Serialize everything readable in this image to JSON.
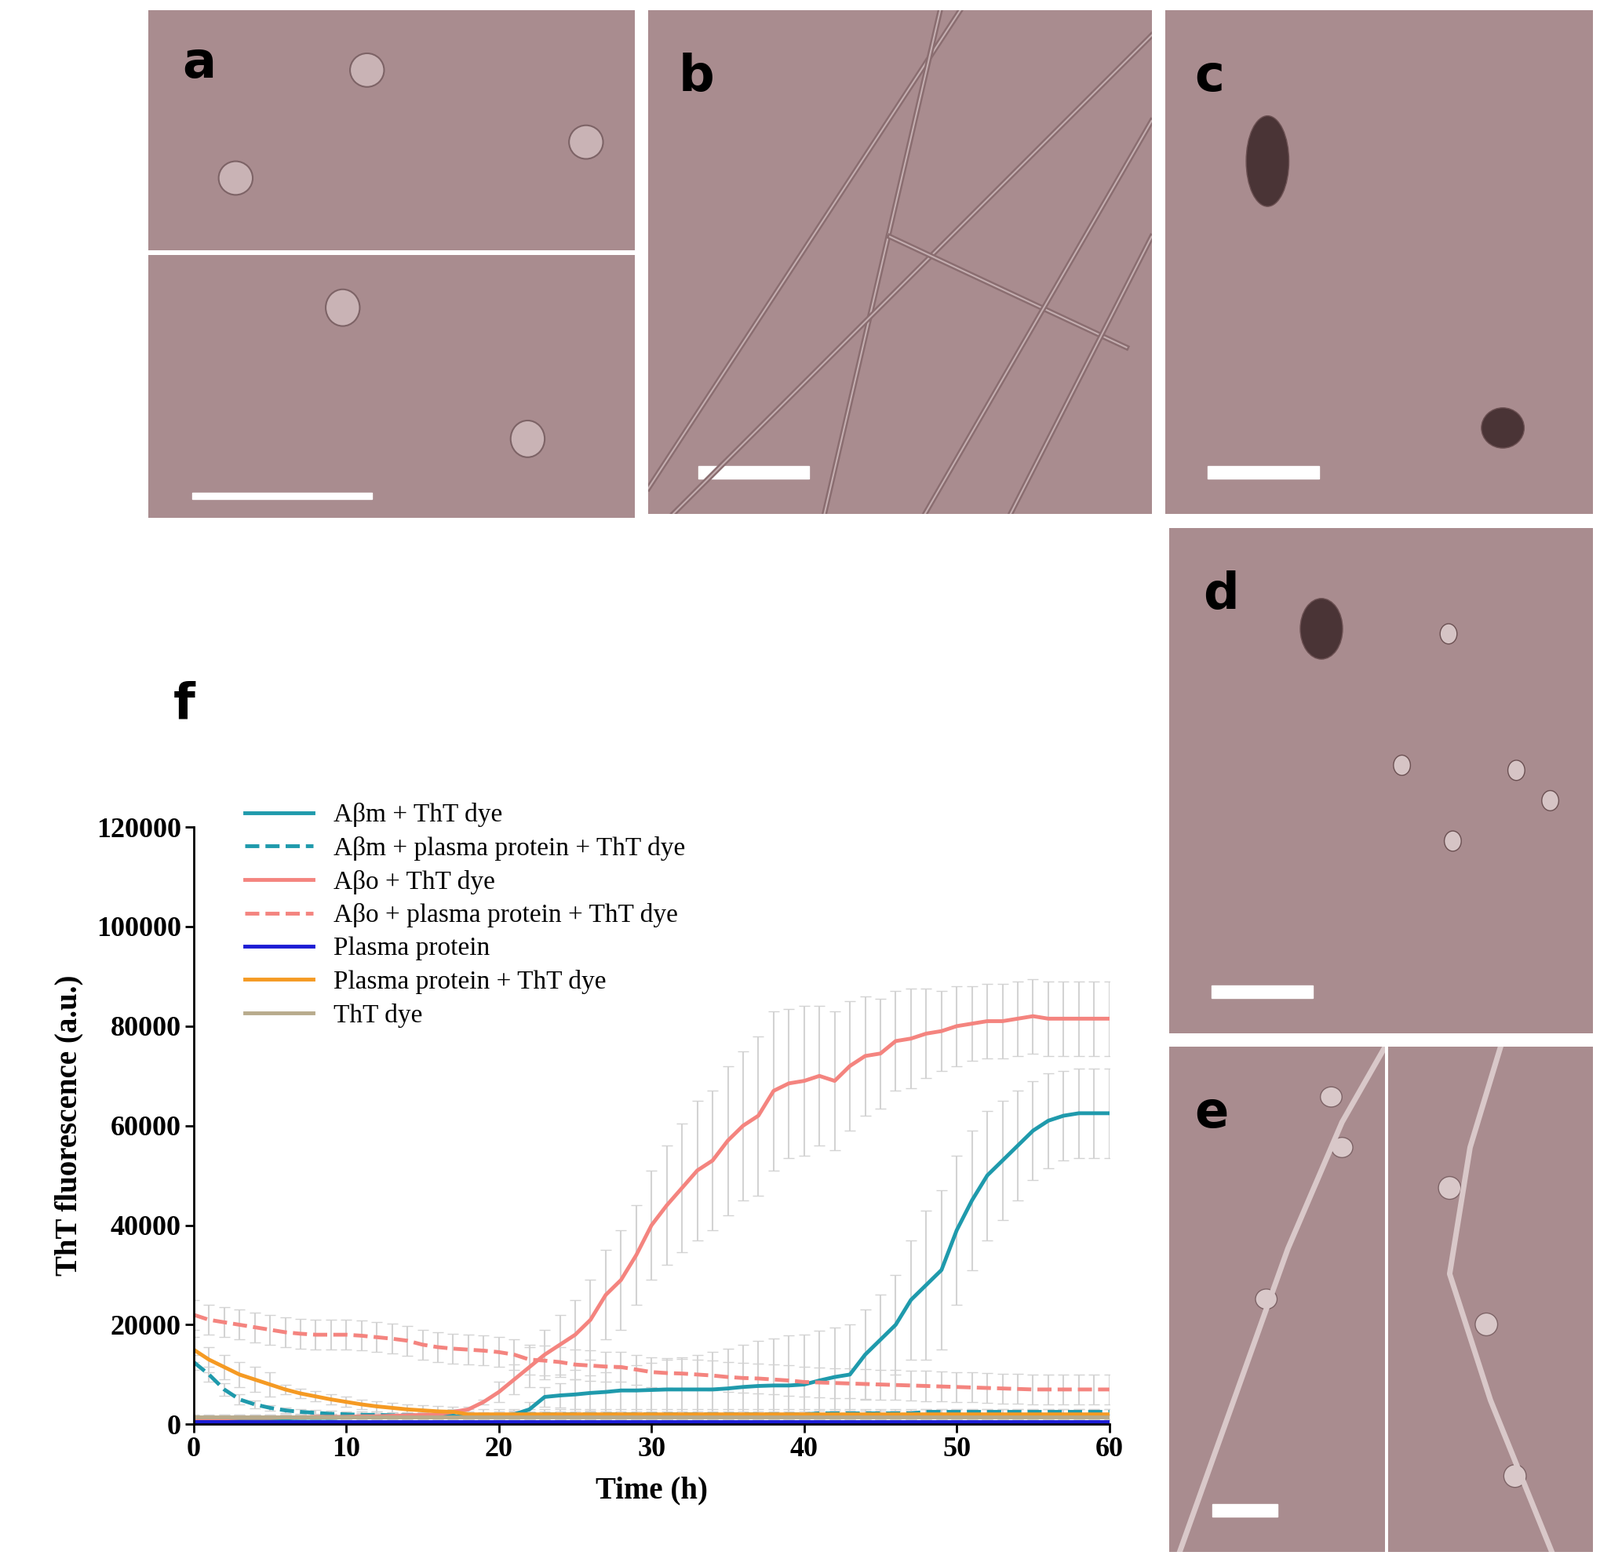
{
  "panels": [
    {
      "label": "a"
    },
    {
      "label": "b"
    },
    {
      "label": "c"
    },
    {
      "label": "d"
    },
    {
      "label": "e"
    }
  ],
  "chart_data": {
    "type": "line",
    "title": "f",
    "x_label": "Time (h)",
    "y_label": "ThT fluorescence (a.u.)",
    "xlim": [
      0,
      60
    ],
    "xticks": [
      0,
      10,
      20,
      30,
      40,
      50,
      60
    ],
    "ylim": [
      0,
      120000
    ],
    "yticks": [
      0,
      20000,
      40000,
      60000,
      80000,
      100000,
      120000
    ],
    "legend": "upper left",
    "grid": false,
    "x": [
      0,
      1,
      2,
      3,
      4,
      5,
      6,
      7,
      8,
      9,
      10,
      11,
      12,
      13,
      14,
      15,
      16,
      17,
      18,
      19,
      20,
      21,
      22,
      23,
      24,
      25,
      26,
      27,
      28,
      29,
      30,
      31,
      32,
      33,
      34,
      35,
      36,
      37,
      38,
      39,
      40,
      41,
      42,
      43,
      44,
      45,
      46,
      47,
      48,
      49,
      50,
      51,
      52,
      53,
      54,
      55,
      56,
      57,
      58,
      59,
      60
    ],
    "series": [
      {
        "name": "Aβm + ThT dye",
        "color": "#1f9aac",
        "line_style": "solid",
        "values": [
          1000,
          1000,
          1100,
          1100,
          1200,
          1200,
          1200,
          1300,
          1300,
          1300,
          1400,
          1400,
          1400,
          1500,
          1500,
          1500,
          1500,
          1600,
          1600,
          1600,
          1700,
          2000,
          3000,
          5500,
          5800,
          6000,
          6300,
          6500,
          6800,
          6800,
          6900,
          7000,
          7000,
          7000,
          7000,
          7200,
          7500,
          7700,
          7800,
          7800,
          8000,
          8800,
          9500,
          10000,
          14000,
          17000,
          20000,
          25000,
          28000,
          31000,
          39000,
          45000,
          50000,
          53000,
          56000,
          59000,
          61000,
          62000,
          62500,
          62500,
          62500
        ],
        "errors": [
          800,
          800,
          800,
          800,
          800,
          800,
          800,
          800,
          800,
          800,
          800,
          800,
          800,
          800,
          800,
          800,
          800,
          800,
          800,
          800,
          800,
          800,
          1500,
          2000,
          2500,
          3000,
          3500,
          4000,
          4500,
          5000,
          5500,
          6000,
          6500,
          7000,
          7500,
          8000,
          8500,
          9000,
          9500,
          10000,
          10000,
          10000,
          10000,
          10000,
          9000,
          9000,
          10000,
          12000,
          15000,
          16000,
          15000,
          14000,
          13000,
          12000,
          11000,
          10000,
          9500,
          9000,
          9000,
          9000,
          9000
        ]
      },
      {
        "name": "Aβm + plasma protein + ThT dye",
        "color": "#1f9aac",
        "line_style": "dashed",
        "values": [
          12500,
          10000,
          7000,
          5000,
          4000,
          3300,
          2800,
          2500,
          2300,
          2100,
          2000,
          1900,
          1900,
          1800,
          1800,
          1800,
          1700,
          1700,
          1600,
          1600,
          1600,
          2000,
          2000,
          2000,
          2000,
          2000,
          2000,
          2000,
          2000,
          2000,
          2000,
          2000,
          2000,
          2000,
          2000,
          2000,
          2000,
          2000,
          2000,
          2000,
          2000,
          2200,
          2200,
          2200,
          2200,
          2200,
          2200,
          2200,
          2500,
          2500,
          2500,
          2500,
          2500,
          2500,
          2500,
          2500,
          2500,
          2500,
          2500,
          2500,
          2500
        ],
        "errors": [
          1500,
          1500,
          1200,
          1000,
          800,
          600,
          600,
          600,
          600,
          600,
          600,
          600,
          600,
          600,
          600,
          600,
          600,
          600,
          600,
          600,
          600,
          600,
          600,
          600,
          600,
          600,
          600,
          600,
          600,
          600,
          600,
          600,
          600,
          600,
          600,
          600,
          600,
          600,
          600,
          600,
          600,
          600,
          600,
          600,
          600,
          600,
          600,
          600,
          600,
          600,
          600,
          600,
          600,
          600,
          600,
          600,
          600,
          600,
          600,
          600,
          600
        ]
      },
      {
        "name": "Aβo + ThT dye",
        "color": "#f4847f",
        "line_style": "solid",
        "values": [
          1200,
          1200,
          1200,
          1300,
          1300,
          1300,
          1400,
          1400,
          1500,
          1500,
          1500,
          1600,
          1600,
          1700,
          1800,
          1900,
          2000,
          2500,
          3000,
          4500,
          6500,
          9000,
          11500,
          14000,
          16000,
          18000,
          21000,
          26000,
          29000,
          34000,
          40000,
          44000,
          47500,
          51000,
          53000,
          57000,
          60000,
          62000,
          67000,
          68500,
          69000,
          70000,
          69000,
          72000,
          74000,
          74500,
          77000,
          77500,
          78500,
          79000,
          80000,
          80500,
          81000,
          81000,
          81500,
          82000,
          81500,
          81500,
          81500,
          81500,
          81500
        ],
        "errors": [
          500,
          500,
          500,
          500,
          500,
          500,
          500,
          500,
          500,
          500,
          500,
          500,
          500,
          500,
          500,
          500,
          500,
          500,
          500,
          500,
          2000,
          3000,
          4000,
          5000,
          6000,
          7000,
          8000,
          9000,
          10000,
          10000,
          11000,
          12000,
          13000,
          14000,
          14000,
          15000,
          15000,
          16000,
          16000,
          15000,
          15000,
          14000,
          14000,
          13000,
          12000,
          11000,
          10000,
          10000,
          9000,
          8000,
          8000,
          7500,
          7500,
          7500,
          7500,
          7500,
          7500,
          7500,
          7500,
          7500,
          7500
        ]
      },
      {
        "name": "Aβo + plasma protein + ThT dye",
        "color": "#f4847f",
        "line_style": "dashed",
        "values": [
          22000,
          21000,
          20500,
          20000,
          19500,
          19000,
          18500,
          18200,
          18000,
          18000,
          18000,
          17800,
          17500,
          17200,
          16800,
          16000,
          15500,
          15200,
          15000,
          14800,
          14500,
          14000,
          13000,
          12800,
          12500,
          12000,
          11800,
          11600,
          11500,
          11000,
          10500,
          10300,
          10200,
          10000,
          9800,
          9500,
          9300,
          9200,
          9000,
          8800,
          8500,
          8400,
          8300,
          8200,
          8100,
          8000,
          7900,
          7800,
          7700,
          7600,
          7500,
          7400,
          7300,
          7200,
          7100,
          7000,
          7000,
          7000,
          7000,
          7000,
          7000
        ],
        "errors": [
          3000,
          3000,
          3000,
          3000,
          3000,
          3000,
          3000,
          3000,
          3000,
          3000,
          3000,
          3000,
          3000,
          3000,
          3000,
          3000,
          3000,
          3000,
          3000,
          3000,
          3000,
          3000,
          3000,
          3000,
          3000,
          3000,
          3000,
          3000,
          3000,
          3000,
          3000,
          3000,
          3000,
          3000,
          3000,
          3000,
          3000,
          3000,
          3000,
          3000,
          3000,
          3000,
          3000,
          3000,
          3000,
          3000,
          3000,
          3000,
          3000,
          3000,
          3000,
          3000,
          3000,
          3000,
          3000,
          3000,
          3000,
          3000,
          3000,
          3000,
          3000
        ]
      },
      {
        "name": "Plasma protein",
        "color": "#1c1cd4",
        "line_style": "solid",
        "values": [
          600,
          600,
          600,
          600,
          600,
          600,
          600,
          600,
          600,
          600,
          600,
          600,
          600,
          600,
          600,
          600,
          600,
          600,
          600,
          600,
          600,
          600,
          600,
          600,
          600,
          600,
          600,
          600,
          600,
          600,
          600,
          600,
          600,
          600,
          600,
          600,
          600,
          600,
          600,
          600,
          600,
          600,
          600,
          600,
          600,
          600,
          600,
          600,
          600,
          600,
          600,
          600,
          600,
          600,
          600,
          600,
          600,
          600,
          600,
          600,
          600
        ],
        "errors": [
          300,
          300,
          300,
          300,
          300,
          300,
          300,
          300,
          300,
          300,
          300,
          300,
          300,
          300,
          300,
          300,
          300,
          300,
          300,
          300,
          300,
          300,
          300,
          300,
          300,
          300,
          300,
          300,
          300,
          300,
          300,
          300,
          300,
          300,
          300,
          300,
          300,
          300,
          300,
          300,
          300,
          300,
          300,
          300,
          300,
          300,
          300,
          300,
          300,
          300,
          300,
          300,
          300,
          300,
          300,
          300,
          300,
          300,
          300,
          300,
          300
        ]
      },
      {
        "name": "Plasma protein + ThT dye",
        "color": "#f59a23",
        "line_style": "solid",
        "values": [
          15000,
          13000,
          11500,
          10000,
          9000,
          8000,
          7000,
          6200,
          5600,
          5000,
          4500,
          4000,
          3600,
          3300,
          3000,
          2800,
          2600,
          2500,
          2000,
          2000,
          2000,
          2000,
          2000,
          2000,
          2000,
          2000,
          2000,
          2000,
          2000,
          2000,
          2000,
          2000,
          2000,
          2000,
          2000,
          2000,
          2000,
          2000,
          2000,
          2000,
          2000,
          2000,
          2000,
          2000,
          2000,
          2000,
          2000,
          2000,
          2000,
          2000,
          2000,
          2000,
          2000,
          2000,
          2000,
          2000,
          2000,
          2000,
          2000,
          2000,
          2000
        ],
        "errors": [
          2500,
          2500,
          2500,
          2500,
          2500,
          2500,
          1000,
          1000,
          1000,
          1000,
          1000,
          1000,
          1000,
          1000,
          1000,
          1000,
          1000,
          1000,
          1000,
          1000,
          1000,
          1000,
          1000,
          1000,
          1000,
          1000,
          1000,
          1000,
          1000,
          1000,
          1000,
          1000,
          1000,
          1000,
          1000,
          1000,
          1000,
          1000,
          1000,
          1000,
          1000,
          1000,
          1000,
          1000,
          1000,
          1000,
          1000,
          1000,
          1000,
          1000,
          1000,
          1000,
          1000,
          1000,
          1000,
          1000,
          1000,
          1000,
          1000,
          1000,
          1000
        ]
      },
      {
        "name": "ThT dye",
        "color": "#b8ab8c",
        "line_style": "solid",
        "values": [
          1500,
          1500,
          1500,
          1500,
          1500,
          1500,
          1500,
          1500,
          1500,
          1500,
          1500,
          1500,
          1500,
          1500,
          1500,
          1500,
          1500,
          1500,
          1500,
          1500,
          1500,
          1500,
          1500,
          1500,
          1500,
          1500,
          1500,
          1500,
          1500,
          1500,
          1500,
          1500,
          1500,
          1500,
          1500,
          1500,
          1500,
          1500,
          1500,
          1500,
          1500,
          1500,
          1500,
          1500,
          1500,
          1500,
          1500,
          1500,
          1500,
          1500,
          1500,
          1500,
          1500,
          1500,
          1500,
          1500,
          1500,
          1500,
          1500,
          1500,
          1500
        ],
        "errors": [
          500,
          500,
          500,
          500,
          500,
          500,
          500,
          500,
          500,
          500,
          500,
          500,
          500,
          500,
          500,
          500,
          500,
          500,
          500,
          500,
          500,
          500,
          500,
          500,
          500,
          500,
          500,
          500,
          500,
          500,
          500,
          500,
          500,
          500,
          500,
          500,
          500,
          500,
          500,
          500,
          500,
          500,
          500,
          500,
          500,
          500,
          500,
          500,
          500,
          500,
          500,
          500,
          500,
          500,
          500,
          500,
          500,
          500,
          500,
          500,
          500
        ]
      }
    ]
  }
}
